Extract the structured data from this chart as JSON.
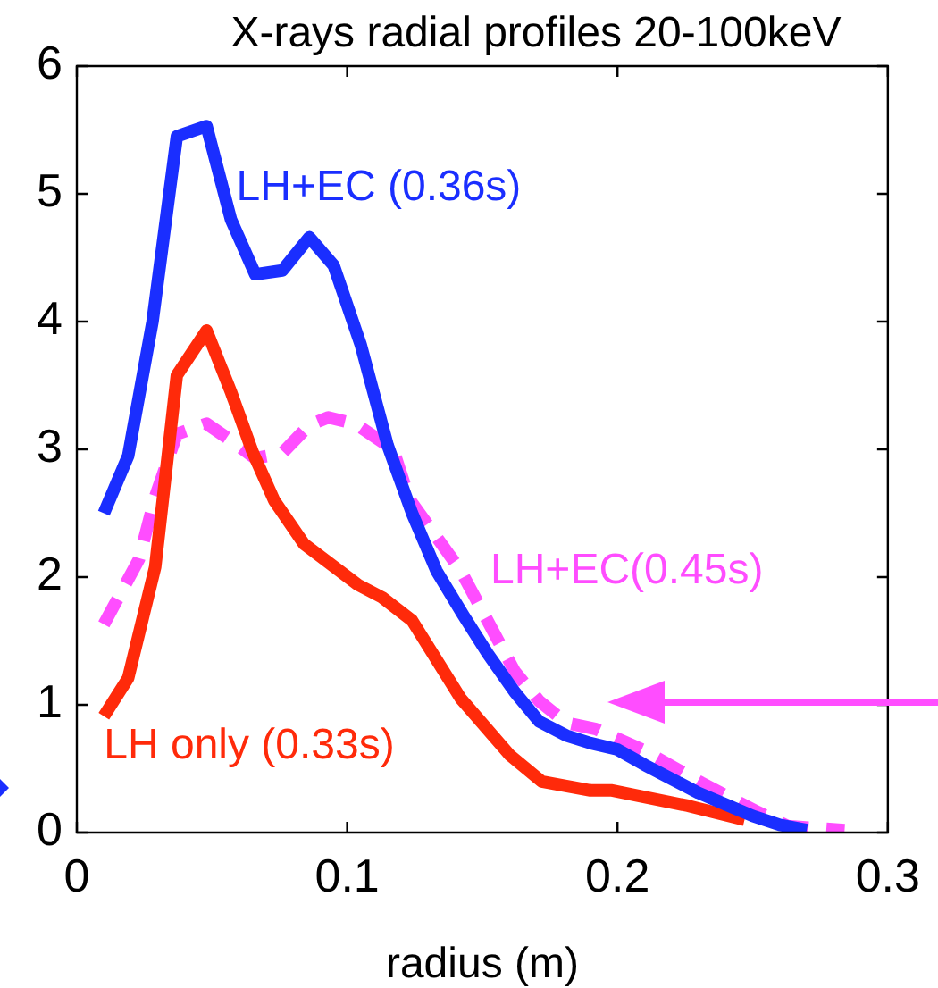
{
  "chart_data": {
    "type": "line",
    "title": "X-rays radial profiles 20-100keV",
    "xlabel": "radius (m)",
    "xlim": [
      0,
      0.3
    ],
    "xticks": [
      0,
      0.1,
      0.2,
      0.3
    ],
    "ylim": [
      0,
      6
    ],
    "yticks": [
      0,
      1,
      2,
      3,
      4,
      5,
      6
    ],
    "grid": false,
    "legend": false,
    "marker": "none",
    "series": [
      {
        "name": "LH+EC (0.36s)",
        "color": "#1a2eff",
        "line_style": "solid",
        "x": [
          0.01,
          0.019,
          0.028,
          0.037,
          0.048,
          0.057,
          0.066,
          0.076,
          0.086,
          0.095,
          0.105,
          0.115,
          0.124,
          0.133,
          0.143,
          0.152,
          0.162,
          0.171,
          0.181,
          0.19,
          0.2,
          0.21,
          0.22,
          0.23,
          0.24,
          0.25,
          0.26,
          0.27
        ],
        "values": [
          2.5,
          2.95,
          4.0,
          5.45,
          5.53,
          4.8,
          4.37,
          4.4,
          4.66,
          4.44,
          3.82,
          3.03,
          2.5,
          2.05,
          1.7,
          1.4,
          1.1,
          0.87,
          0.76,
          0.7,
          0.65,
          0.53,
          0.42,
          0.31,
          0.22,
          0.13,
          0.06,
          0.02
        ]
      },
      {
        "name": "LH only (0.33s)",
        "color": "#ff2a0a",
        "line_style": "solid",
        "x": [
          0.01,
          0.019,
          0.029,
          0.037,
          0.048,
          0.057,
          0.065,
          0.073,
          0.084,
          0.104,
          0.113,
          0.124,
          0.142,
          0.16,
          0.172,
          0.19,
          0.198,
          0.226,
          0.247
        ],
        "values": [
          0.91,
          1.21,
          2.08,
          3.58,
          3.93,
          3.45,
          2.98,
          2.6,
          2.26,
          1.94,
          1.84,
          1.66,
          1.05,
          0.61,
          0.4,
          0.33,
          0.33,
          0.21,
          0.1
        ]
      },
      {
        "name": "LH+EC(0.45s)",
        "color": "#ff4dff",
        "line_style": "dashed",
        "x": [
          0.01,
          0.023,
          0.029,
          0.037,
          0.048,
          0.057,
          0.066,
          0.076,
          0.086,
          0.093,
          0.103,
          0.117,
          0.123,
          0.142,
          0.162,
          0.171,
          0.181,
          0.192,
          0.209,
          0.231,
          0.252,
          0.263,
          0.284
        ],
        "values": [
          1.63,
          2.14,
          2.63,
          3.12,
          3.2,
          3.07,
          2.93,
          2.97,
          3.19,
          3.25,
          3.2,
          3.0,
          2.61,
          2.05,
          1.26,
          1.03,
          0.86,
          0.81,
          0.65,
          0.39,
          0.16,
          0.05,
          0.02
        ]
      }
    ]
  }
}
